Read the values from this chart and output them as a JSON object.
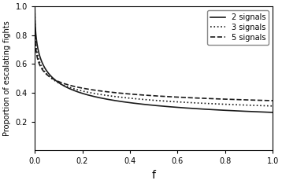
{
  "title": "",
  "xlabel": "f",
  "ylabel": "Proportion of escalating fights",
  "xlim": [
    0,
    1
  ],
  "ylim": [
    0,
    1
  ],
  "xticks": [
    0,
    0.2,
    0.4,
    0.6,
    0.8,
    1.0
  ],
  "yticks": [
    0.2,
    0.4,
    0.6,
    0.8,
    1.0
  ],
  "lines": [
    {
      "n": 2,
      "label": "2 signals",
      "linestyle": "solid",
      "color": "#1a1a1a",
      "linewidth": 1.2,
      "c": 0.13,
      "k": 5.5,
      "pow": 0.55
    },
    {
      "n": 3,
      "label": "3 signals",
      "linestyle": "dotted",
      "color": "#1a1a1a",
      "linewidth": 1.2,
      "c": 0.17,
      "k": 5.0,
      "pow": 0.45
    },
    {
      "n": 5,
      "label": "5 signals",
      "linestyle": "dashed",
      "color": "#1a1a1a",
      "linewidth": 1.2,
      "c": 0.2,
      "k": 4.5,
      "pow": 0.38
    }
  ],
  "legend_loc": "upper right",
  "legend_fontsize": 7,
  "xlabel_fontsize": 10,
  "ylabel_fontsize": 7,
  "tick_fontsize": 7,
  "background_color": "#ffffff",
  "figsize": [
    3.58,
    2.34
  ],
  "dpi": 100
}
